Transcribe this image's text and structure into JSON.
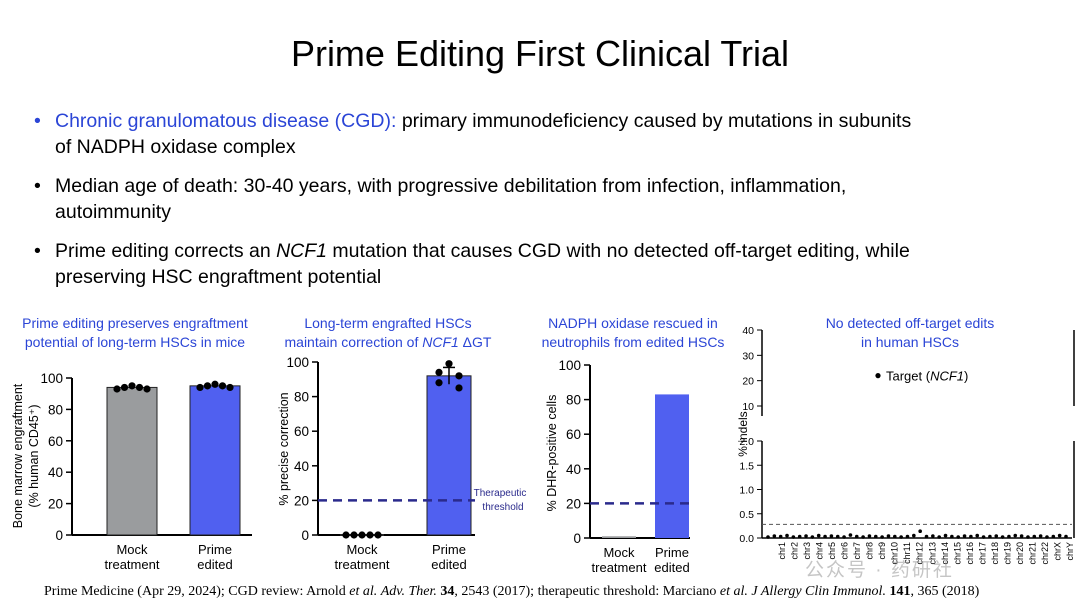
{
  "slide": {
    "title": "Prime Editing First Clinical Trial",
    "bullets": [
      {
        "highlight": "Chronic granulomatous disease (CGD):",
        "text": " primary immunodeficiency caused by mutations in subunits",
        "text2": "of NADPH oxidase complex"
      },
      {
        "text": "Median age of death: 30-40 years, with progressive debilitation from infection, inflammation,",
        "text2": "autoimmunity"
      },
      {
        "text": "Prime editing corrects an ",
        "italic": "NCF1",
        "text_after": " mutation that causes CGD with no detected off-target editing, while",
        "text2": "preserving HSC engraftment potential"
      }
    ],
    "footer": {
      "p1": "Prime Medicine (Apr 29, 2024); CGD review: Arnold ",
      "i1": "et al.",
      "p2": " ",
      "i2": "Adv. Ther.",
      "p3": " ",
      "b1": "34",
      "p4": ", 2543 (2017); therapeutic threshold: Marciano ",
      "i3": "et al.",
      "p5": " ",
      "i4": "J Allergy Clin Immunol.",
      "p6": " ",
      "b2": "141",
      "p7": ", 365 (2018)"
    },
    "watermark": "公众号 · 药研社"
  },
  "colors": {
    "accent_blue": "#2b45d6",
    "bar_blue": "#5060f0",
    "bar_gray": "#9a9c9e",
    "threshold": "#2a2a8c"
  },
  "chart_data": [
    {
      "type": "bar",
      "title_line1": "Prime editing preserves engraftment",
      "title_line2": "potential of long-term HSCs in mice",
      "ylabel_line1": "Bone marrow engraftment",
      "ylabel_line2": "(% human CD45⁺)",
      "ylim": [
        0,
        100
      ],
      "yticks": [
        0,
        20,
        40,
        60,
        80,
        100
      ],
      "categories": [
        [
          "Mock",
          "treatment"
        ],
        [
          "Prime",
          "edited"
        ]
      ],
      "values": [
        94,
        95
      ],
      "points": [
        [
          93,
          94,
          95,
          94,
          93
        ],
        [
          94,
          95,
          96,
          95,
          94
        ]
      ],
      "bar_colors": [
        "#9a9c9e",
        "#5060f0"
      ]
    },
    {
      "type": "bar",
      "title_line1": "Long-term engrafted HSCs",
      "title_line2a": "maintain correction of ",
      "title_line2i": "NCF1",
      "title_line2b": " ΔGT",
      "ylabel": "% precise correction",
      "ylim": [
        0,
        100
      ],
      "yticks": [
        0,
        20,
        40,
        60,
        80,
        100
      ],
      "categories": [
        [
          "Mock",
          "treatment"
        ],
        [
          "Prime",
          "edited"
        ]
      ],
      "values": [
        0,
        92
      ],
      "points": [
        [
          0,
          0,
          0,
          0,
          0
        ],
        [
          99,
          94,
          92,
          88,
          85
        ]
      ],
      "threshold": 20,
      "threshold_label": [
        "Therapeutic",
        "threshold"
      ],
      "bar_colors": [
        "#9a9c9e",
        "#5060f0"
      ]
    },
    {
      "type": "bar",
      "title_line1": "NADPH oxidase rescued in",
      "title_line2": "neutrophils from edited HSCs",
      "ylabel": "% DHR-positive cells",
      "ylim": [
        0,
        100
      ],
      "yticks": [
        0,
        20,
        40,
        60,
        80,
        100
      ],
      "categories": [
        [
          "Mock",
          "treatment"
        ],
        [
          "Prime",
          "edited"
        ]
      ],
      "values": [
        1,
        83
      ],
      "threshold": 20,
      "bar_colors": [
        "#9a9c9e",
        "#5060f0"
      ]
    },
    {
      "type": "scatter",
      "title_line1": "No detected off-target edits",
      "title_line2": "in human HSCs",
      "ylabel": "% indels",
      "upper_ylim": [
        10,
        40
      ],
      "upper_yticks": [
        10,
        20,
        30,
        40
      ],
      "lower_ylim": [
        0,
        2.0
      ],
      "lower_yticks": [
        0.0,
        0.5,
        1.0,
        1.5,
        2.0
      ],
      "dashed_line": 0.28,
      "target_value": 22,
      "target_label": "Target",
      "target_italic": "NCF1",
      "chromosomes": [
        "chr1",
        "chr2",
        "chr3",
        "chr4",
        "chr5",
        "chr6",
        "chr7",
        "chr8",
        "chr9",
        "chr10",
        "chr11",
        "chr12",
        "chr13",
        "chr14",
        "chr15",
        "chr16",
        "chr17",
        "chr18",
        "chr19",
        "chr20",
        "chr21",
        "chr22",
        "chrX",
        "chrY"
      ],
      "offtarget_values": [
        0.02,
        0.04,
        0.03,
        0.05,
        0.02,
        0.03,
        0.04,
        0.02,
        0.05,
        0.03,
        0.04,
        0.03,
        0.02,
        0.06,
        0.03,
        0.02,
        0.04,
        0.03,
        0.02,
        0.04,
        0.03,
        0.02,
        0.03,
        0.05,
        0.14,
        0.03,
        0.04,
        0.02,
        0.05,
        0.03,
        0.02,
        0.04,
        0.03,
        0.05,
        0.02,
        0.03,
        0.04,
        0.02,
        0.03,
        0.05,
        0.04,
        0.02,
        0.03,
        0.04,
        0.02,
        0.03,
        0.05,
        0.03
      ]
    }
  ]
}
